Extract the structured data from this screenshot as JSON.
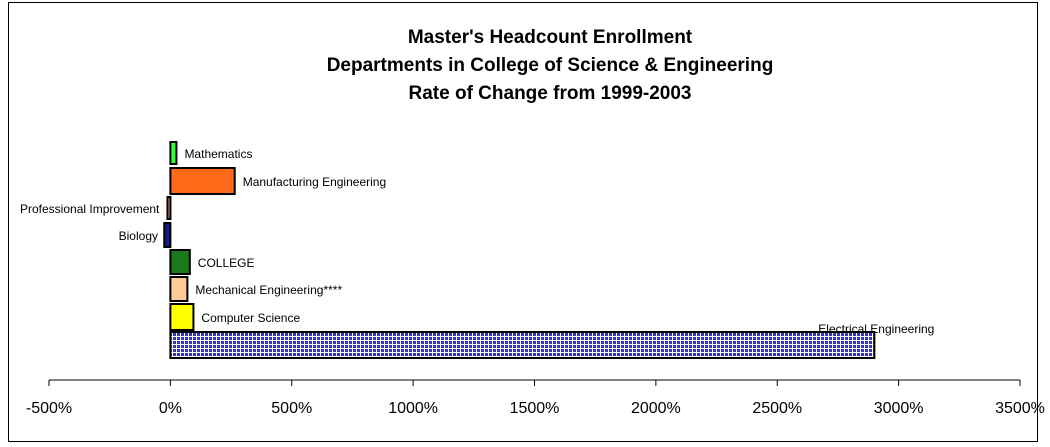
{
  "chart_data": {
    "type": "bar",
    "orientation": "horizontal",
    "title": "Master's Headcount Enrollment",
    "subtitle_lines": [
      "Departments in College of Science & Engineering",
      "Rate of Change from 1999-2003"
    ],
    "xlim": [
      -500,
      3500
    ],
    "xticks": [
      "-500%",
      "0%",
      "500%",
      "1000%",
      "1500%",
      "2000%",
      "2500%",
      "3000%",
      "3500%"
    ],
    "bars": [
      {
        "label": "Mathematics",
        "value": 25,
        "color": "#33ff33"
      },
      {
        "label": "Manufacturing Engineering",
        "value": 265,
        "color": "#ff6a1a"
      },
      {
        "label": "Professional Improvement",
        "value": -12,
        "color": "#ff8080"
      },
      {
        "label": "Biology",
        "value": -25,
        "color": "#1a1a8c"
      },
      {
        "label": "COLLEGE",
        "value": 80,
        "color": "#1a7a1a"
      },
      {
        "label": "Mechanical Engineering****",
        "value": 70,
        "color": "#ffcc99"
      },
      {
        "label": "Computer Science",
        "value": 95,
        "color": "#ffff00"
      },
      {
        "label": "Electrical Engineering",
        "value": 2900,
        "color": "#3333cc",
        "pattern": "grid"
      }
    ]
  }
}
